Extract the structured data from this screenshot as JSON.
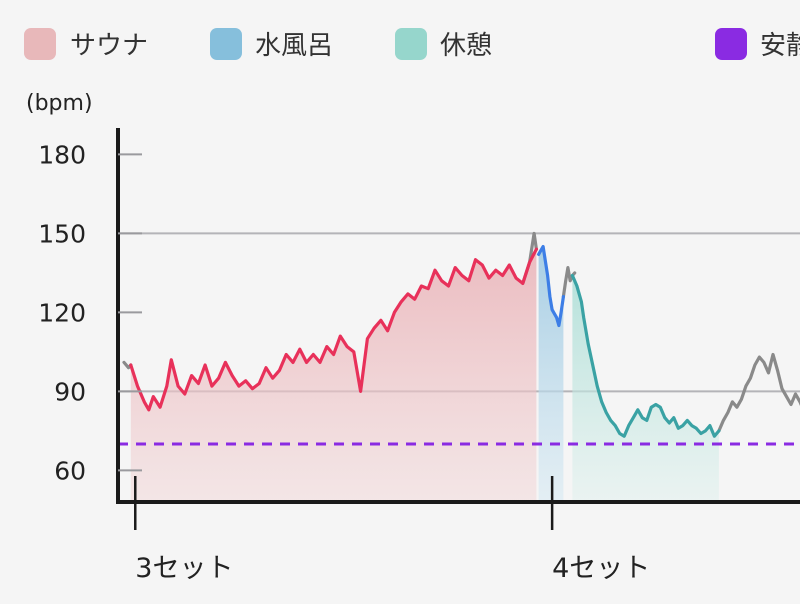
{
  "chart_data": {
    "type": "line",
    "ylabel": "(bpm)",
    "ylim": [
      48,
      190
    ],
    "yticks": [
      60,
      90,
      120,
      150,
      180
    ],
    "grid_values": [
      90,
      150
    ],
    "reference": {
      "label": "安静時",
      "value": 70,
      "color": "#8a2be2"
    },
    "legend": [
      {
        "label": "サウナ",
        "color": "#e8b8ba"
      },
      {
        "label": "水風呂",
        "color": "#86bfdc"
      },
      {
        "label": "休憩",
        "color": "#96d6cc"
      },
      {
        "label": "安静時",
        "color": "#8a2be2"
      }
    ],
    "x_markers": [
      {
        "label": "3セット",
        "t": 0.5
      },
      {
        "label": "4セット",
        "t": 19
      }
    ],
    "xlim": [
      0,
      30
    ],
    "segments": [
      {
        "phase": "sauna",
        "color": "#e8315a",
        "fill": "#e8b8ba",
        "points": [
          [
            0.3,
            100
          ],
          [
            0.6,
            92
          ],
          [
            0.9,
            86
          ],
          [
            1.1,
            83
          ],
          [
            1.3,
            88
          ],
          [
            1.6,
            84
          ],
          [
            1.9,
            92
          ],
          [
            2.1,
            102
          ],
          [
            2.4,
            92
          ],
          [
            2.7,
            89
          ],
          [
            3.0,
            96
          ],
          [
            3.3,
            93
          ],
          [
            3.6,
            100
          ],
          [
            3.9,
            92
          ],
          [
            4.2,
            95
          ],
          [
            4.5,
            101
          ],
          [
            4.8,
            96
          ],
          [
            5.1,
            92
          ],
          [
            5.4,
            94
          ],
          [
            5.7,
            91
          ],
          [
            6.0,
            93
          ],
          [
            6.3,
            99
          ],
          [
            6.6,
            95
          ],
          [
            6.9,
            98
          ],
          [
            7.2,
            104
          ],
          [
            7.5,
            101
          ],
          [
            7.8,
            106
          ],
          [
            8.1,
            101
          ],
          [
            8.4,
            104
          ],
          [
            8.7,
            101
          ],
          [
            9.0,
            107
          ],
          [
            9.3,
            104
          ],
          [
            9.6,
            111
          ],
          [
            9.9,
            107
          ],
          [
            10.2,
            105
          ],
          [
            10.5,
            90
          ],
          [
            10.8,
            110
          ],
          [
            11.1,
            114
          ],
          [
            11.4,
            117
          ],
          [
            11.7,
            113
          ],
          [
            12.0,
            120
          ],
          [
            12.3,
            124
          ],
          [
            12.6,
            127
          ],
          [
            12.9,
            125
          ],
          [
            13.2,
            130
          ],
          [
            13.5,
            129
          ],
          [
            13.8,
            136
          ],
          [
            14.1,
            132
          ],
          [
            14.4,
            130
          ],
          [
            14.7,
            137
          ],
          [
            15.0,
            134
          ],
          [
            15.3,
            132
          ],
          [
            15.6,
            140
          ],
          [
            15.9,
            138
          ],
          [
            16.2,
            133
          ],
          [
            16.5,
            136
          ],
          [
            16.8,
            134
          ],
          [
            17.1,
            138
          ],
          [
            17.4,
            133
          ],
          [
            17.7,
            131
          ],
          [
            18.0,
            139
          ],
          [
            18.3,
            144
          ]
        ]
      },
      {
        "phase": "water",
        "color": "#3d7ee6",
        "fill": "#a8cfe4",
        "points": [
          [
            18.4,
            142
          ],
          [
            18.6,
            145
          ],
          [
            18.8,
            134
          ],
          [
            18.9,
            126
          ],
          [
            19.0,
            121
          ],
          [
            19.2,
            118
          ],
          [
            19.3,
            115
          ],
          [
            19.4,
            120
          ],
          [
            19.5,
            126
          ]
        ]
      },
      {
        "phase": "rest",
        "color": "#3aa2a4",
        "fill": "#a9ded5",
        "points": [
          [
            19.9,
            134
          ],
          [
            20.1,
            130
          ],
          [
            20.3,
            124
          ],
          [
            20.4,
            118
          ],
          [
            20.6,
            108
          ],
          [
            20.8,
            100
          ],
          [
            21.0,
            92
          ],
          [
            21.2,
            86
          ],
          [
            21.4,
            82
          ],
          [
            21.6,
            79
          ],
          [
            21.8,
            77
          ],
          [
            22.0,
            74
          ],
          [
            22.2,
            73
          ],
          [
            22.4,
            77
          ],
          [
            22.6,
            80
          ],
          [
            22.8,
            83
          ],
          [
            23.0,
            80
          ],
          [
            23.2,
            79
          ],
          [
            23.4,
            84
          ],
          [
            23.6,
            85
          ],
          [
            23.8,
            84
          ],
          [
            24.0,
            80
          ],
          [
            24.2,
            78
          ],
          [
            24.4,
            80
          ],
          [
            24.6,
            76
          ],
          [
            24.8,
            77
          ],
          [
            25.0,
            79
          ],
          [
            25.2,
            77
          ],
          [
            25.4,
            76
          ],
          [
            25.6,
            74
          ],
          [
            25.8,
            75
          ],
          [
            26.0,
            77
          ],
          [
            26.2,
            73
          ],
          [
            26.4,
            75
          ]
        ]
      },
      {
        "phase": "other",
        "color": "#8a8a8a",
        "points": [
          [
            0.0,
            101
          ],
          [
            0.2,
            99
          ],
          [
            0.3,
            100
          ]
        ]
      },
      {
        "phase": "other",
        "color": "#8a8a8a",
        "points": [
          [
            17.7,
            131
          ],
          [
            18.0,
            139
          ],
          [
            18.2,
            150
          ],
          [
            18.3,
            144
          ]
        ]
      },
      {
        "phase": "other",
        "color": "#8a8a8a",
        "points": [
          [
            19.5,
            126
          ],
          [
            19.6,
            132
          ],
          [
            19.7,
            137
          ],
          [
            19.8,
            132
          ],
          [
            19.9,
            134
          ],
          [
            20.0,
            135
          ]
        ]
      },
      {
        "phase": "other",
        "color": "#8a8a8a",
        "points": [
          [
            26.4,
            75
          ],
          [
            26.6,
            79
          ],
          [
            26.8,
            82
          ],
          [
            27.0,
            86
          ],
          [
            27.2,
            84
          ],
          [
            27.4,
            87
          ],
          [
            27.6,
            92
          ],
          [
            27.8,
            95
          ],
          [
            28.0,
            100
          ],
          [
            28.2,
            103
          ],
          [
            28.4,
            101
          ],
          [
            28.6,
            97
          ],
          [
            28.8,
            104
          ],
          [
            29.0,
            98
          ],
          [
            29.2,
            91
          ],
          [
            29.4,
            88
          ],
          [
            29.6,
            85
          ],
          [
            29.8,
            89
          ],
          [
            30.0,
            86
          ],
          [
            30.2,
            82
          ],
          [
            30.4,
            86
          ],
          [
            30.6,
            84
          ],
          [
            30.8,
            82
          ],
          [
            31.0,
            80
          ],
          [
            31.2,
            77
          ]
        ]
      }
    ]
  }
}
